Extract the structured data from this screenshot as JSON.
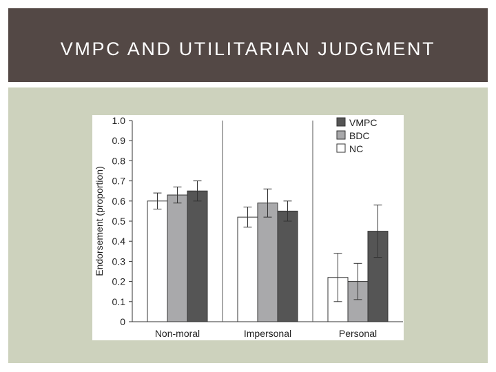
{
  "slide": {
    "title": "VMPC AND UTILITARIAN JUDGMENT"
  },
  "colors": {
    "title_bar": "#534845",
    "content_bg": "#cdd2bd",
    "VMPC": "#555555",
    "BDC": "#a9a9ab",
    "NC": "#ffffff"
  },
  "chart_data": {
    "type": "bar",
    "title": "",
    "xlabel": "",
    "ylabel": "Endorsement (proportion)",
    "ylim": [
      0,
      1.0
    ],
    "yticks": [
      "0",
      "0.1",
      "0.2",
      "0.3",
      "0.4",
      "0.5",
      "0.6",
      "0.7",
      "0.8",
      "0.9",
      "1.0"
    ],
    "categories": [
      "Non-moral",
      "Impersonal",
      "Personal"
    ],
    "series": [
      {
        "name": "NC",
        "values": [
          0.6,
          0.52,
          0.22
        ],
        "error": [
          0.04,
          0.05,
          0.12
        ]
      },
      {
        "name": "BDC",
        "values": [
          0.63,
          0.59,
          0.2
        ],
        "error": [
          0.04,
          0.07,
          0.09
        ]
      },
      {
        "name": "VMPC",
        "values": [
          0.65,
          0.55,
          0.45
        ],
        "error": [
          0.05,
          0.05,
          0.13
        ]
      }
    ],
    "legend": {
      "placement": "top-right",
      "entries": [
        "VMPC",
        "BDC",
        "NC"
      ]
    },
    "grid": false
  }
}
